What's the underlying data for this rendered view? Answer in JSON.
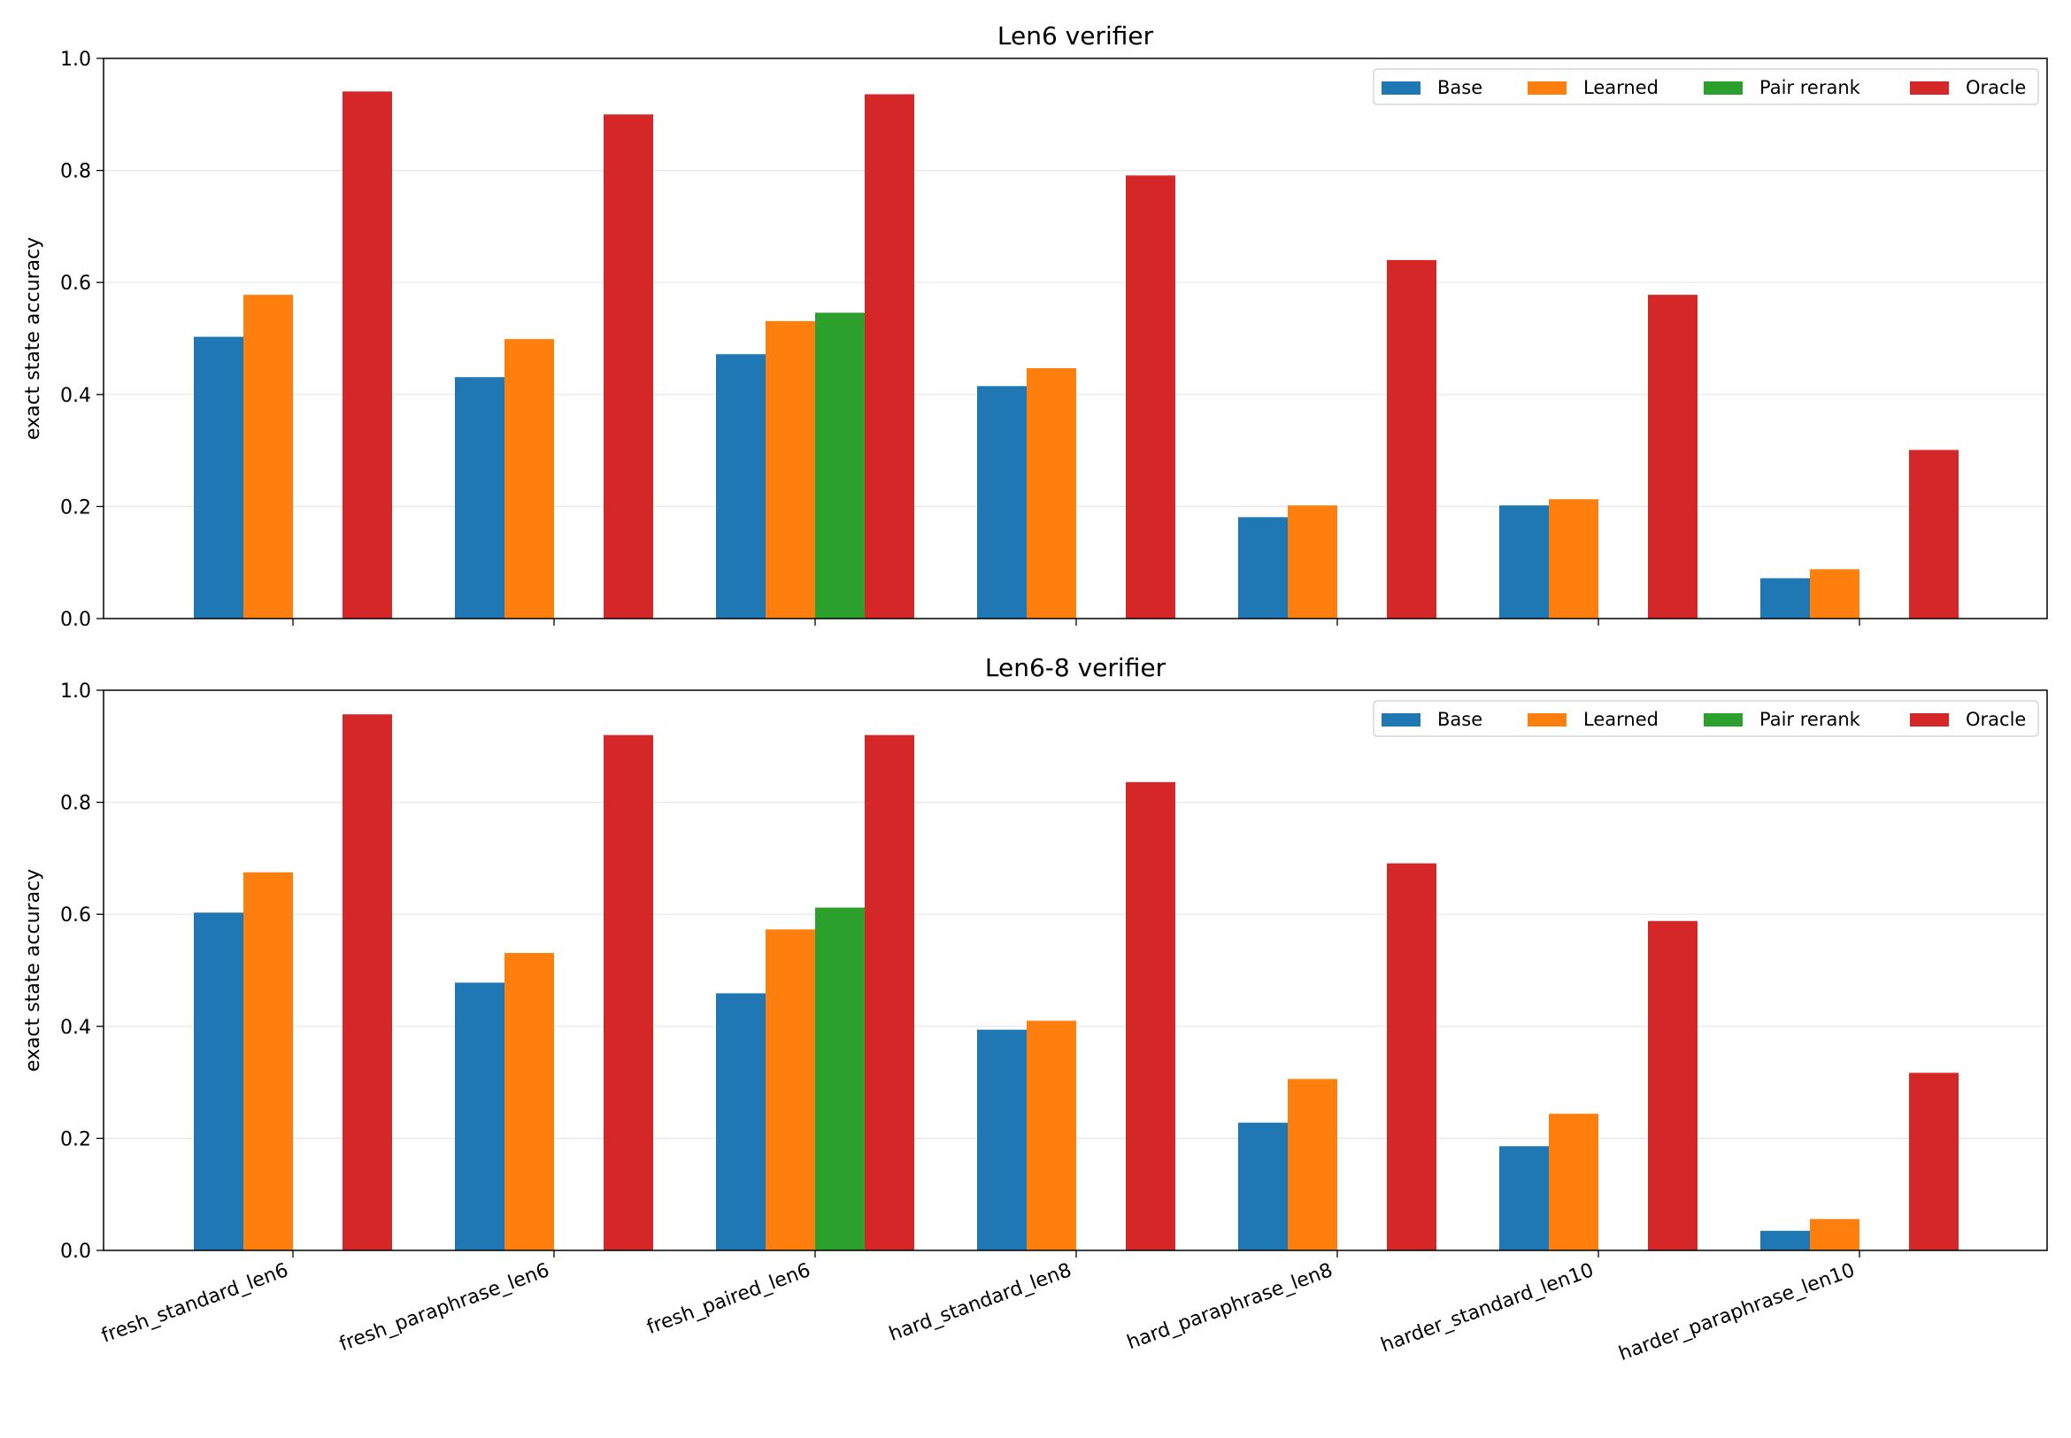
{
  "chart_data": [
    {
      "type": "bar",
      "title": "Len6 verifier",
      "xlabel": "",
      "ylabel": "exact state accuracy",
      "ylim": [
        0,
        1.0
      ],
      "yticks": [
        "0.0",
        "0.2",
        "0.4",
        "0.6",
        "0.8",
        "1.0"
      ],
      "grid": "y",
      "legend_position": "top-right",
      "categories": [
        "fresh_standard_len6",
        "fresh_paraphrase_len6",
        "fresh_paired_len6",
        "hard_standard_len8",
        "hard_paraphrase_len8",
        "harder_standard_len10",
        "harder_paraphrase_len10"
      ],
      "show_category_labels": false,
      "series": [
        {
          "name": "Base",
          "color": "#1f77b4",
          "values": [
            0.503,
            0.431,
            0.472,
            0.415,
            0.181,
            0.202,
            0.072
          ]
        },
        {
          "name": "Learned",
          "color": "#ff7f0e",
          "values": [
            0.578,
            0.499,
            0.531,
            0.447,
            0.202,
            0.213,
            0.088
          ]
        },
        {
          "name": "Pair rerank",
          "color": "#2ca02c",
          "values": [
            null,
            null,
            0.546,
            null,
            null,
            null,
            null
          ]
        },
        {
          "name": "Oracle",
          "color": "#d62728",
          "values": [
            0.941,
            0.9,
            0.936,
            0.791,
            0.64,
            0.578,
            0.301
          ]
        }
      ]
    },
    {
      "type": "bar",
      "title": "Len6-8 verifier",
      "xlabel": "",
      "ylabel": "exact state accuracy",
      "ylim": [
        0,
        1.0
      ],
      "yticks": [
        "0.0",
        "0.2",
        "0.4",
        "0.6",
        "0.8",
        "1.0"
      ],
      "grid": "y",
      "legend_position": "top-right",
      "categories": [
        "fresh_standard_len6",
        "fresh_paraphrase_len6",
        "fresh_paired_len6",
        "hard_standard_len8",
        "hard_paraphrase_len8",
        "harder_standard_len10",
        "harder_paraphrase_len10"
      ],
      "show_category_labels": true,
      "series": [
        {
          "name": "Base",
          "color": "#1f77b4",
          "values": [
            0.603,
            0.478,
            0.459,
            0.394,
            0.228,
            0.186,
            0.035
          ]
        },
        {
          "name": "Learned",
          "color": "#ff7f0e",
          "values": [
            0.675,
            0.531,
            0.573,
            0.41,
            0.306,
            0.244,
            0.056
          ]
        },
        {
          "name": "Pair rerank",
          "color": "#2ca02c",
          "values": [
            null,
            null,
            0.612,
            null,
            null,
            null,
            null
          ]
        },
        {
          "name": "Oracle",
          "color": "#d62728",
          "values": [
            0.957,
            0.92,
            0.92,
            0.836,
            0.691,
            0.588,
            0.317
          ]
        }
      ]
    }
  ]
}
